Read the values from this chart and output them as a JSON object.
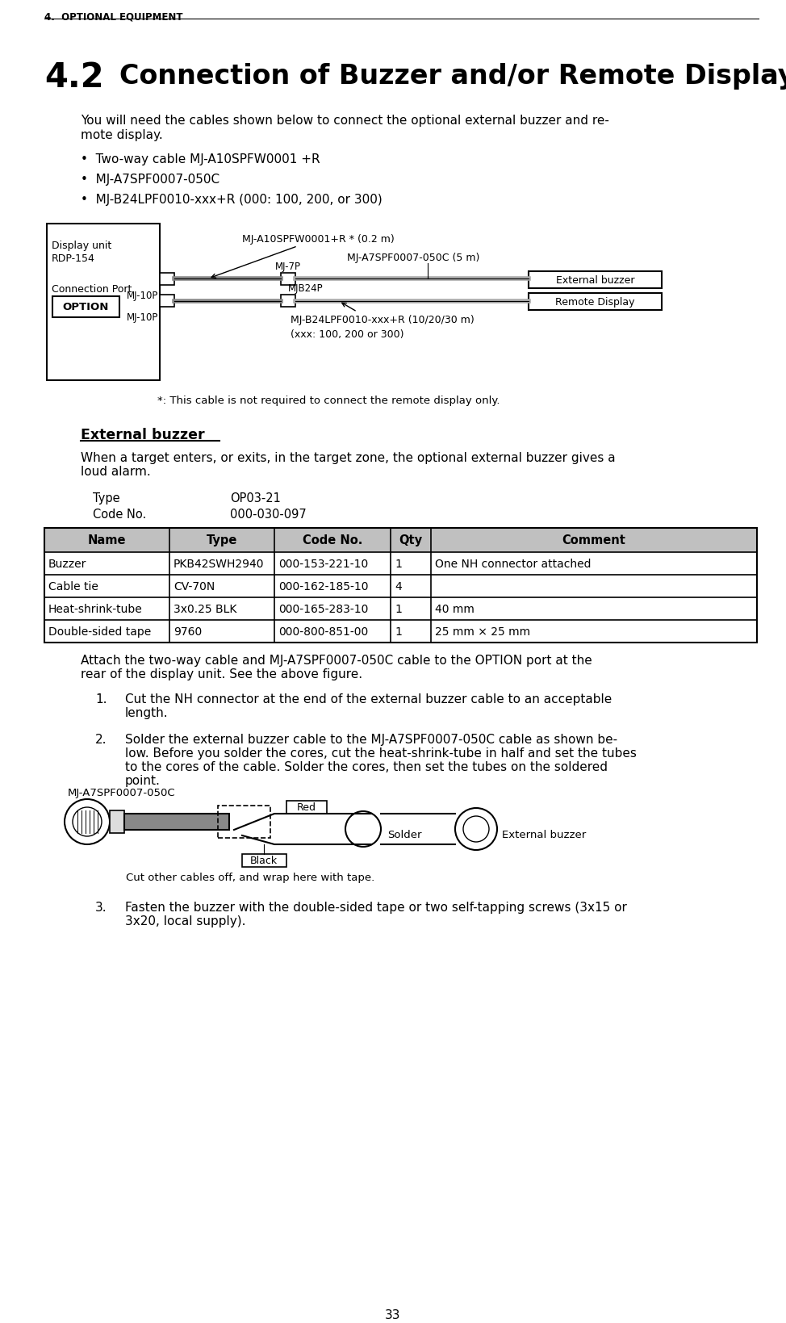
{
  "bg_color": "#ffffff",
  "section_header": "4.  OPTIONAL EQUIPMENT",
  "title_num": "4.2",
  "title_text": "Connection of Buzzer and/or Remote Display",
  "intro_line1": "You will need the cables shown below to connect the optional external buzzer and re-",
  "intro_line2": "mote display.",
  "bullets": [
    "Two-way cable MJ-A10SPFW0001 +R",
    "MJ-A7SPF0007-050C",
    "MJ-B24LPF0010-xxx+R (000: 100, 200, or 300)"
  ],
  "diagram_note": "*: This cable is not required to connect the remote display only.",
  "ext_buzzer_header": "External buzzer",
  "ext_buzzer_line1": "When a target enters, or exits, in the target zone, the optional external buzzer gives a",
  "ext_buzzer_line2": "loud alarm.",
  "type_label": "Type",
  "type_value": "OP03-21",
  "code_label": "Code No.",
  "code_value": "000-030-097",
  "table_headers": [
    "Name",
    "Type",
    "Code No.",
    "Qty",
    "Comment"
  ],
  "table_rows": [
    [
      "Buzzer",
      "PKB42SWH2940",
      "000-153-221-10",
      "1",
      "One NH connector attached"
    ],
    [
      "Cable tie",
      "CV-70N",
      "000-162-185-10",
      "4",
      ""
    ],
    [
      "Heat-shrink-tube",
      "3x0.25 BLK",
      "000-165-283-10",
      "1",
      "40 mm"
    ],
    [
      "Double-sided tape",
      "9760",
      "000-800-851-00",
      "1",
      "25 mm × 25 mm"
    ]
  ],
  "attach_line1": "Attach the two-way cable and MJ-A7SPF0007-050C cable to the OPTION port at the",
  "attach_line2": "rear of the display unit. See the above figure.",
  "step1_lines": [
    "Cut the NH connector at the end of the external buzzer cable to an acceptable",
    "length."
  ],
  "step2_lines": [
    "Solder the external buzzer cable to the MJ-A7SPF0007-050C cable as shown be-",
    "low. Before you solder the cores, cut the heat-shrink-tube in half and set the tubes",
    "to the cores of the cable. Solder the cores, then set the tubes on the soldered",
    "point."
  ],
  "step3_lines": [
    "Fasten the buzzer with the double-sided tape or two self-tapping screws (3x15 or",
    "3x20, local supply)."
  ],
  "red_label": "Red",
  "black_label": "Black",
  "solder_label": "Solder",
  "ext_buzzer_label2": "External buzzer",
  "cable_label2": "MJ-A7SPF0007-050C",
  "cut_label": "Cut other cables off, and wrap here with tape.",
  "page_number": "33"
}
